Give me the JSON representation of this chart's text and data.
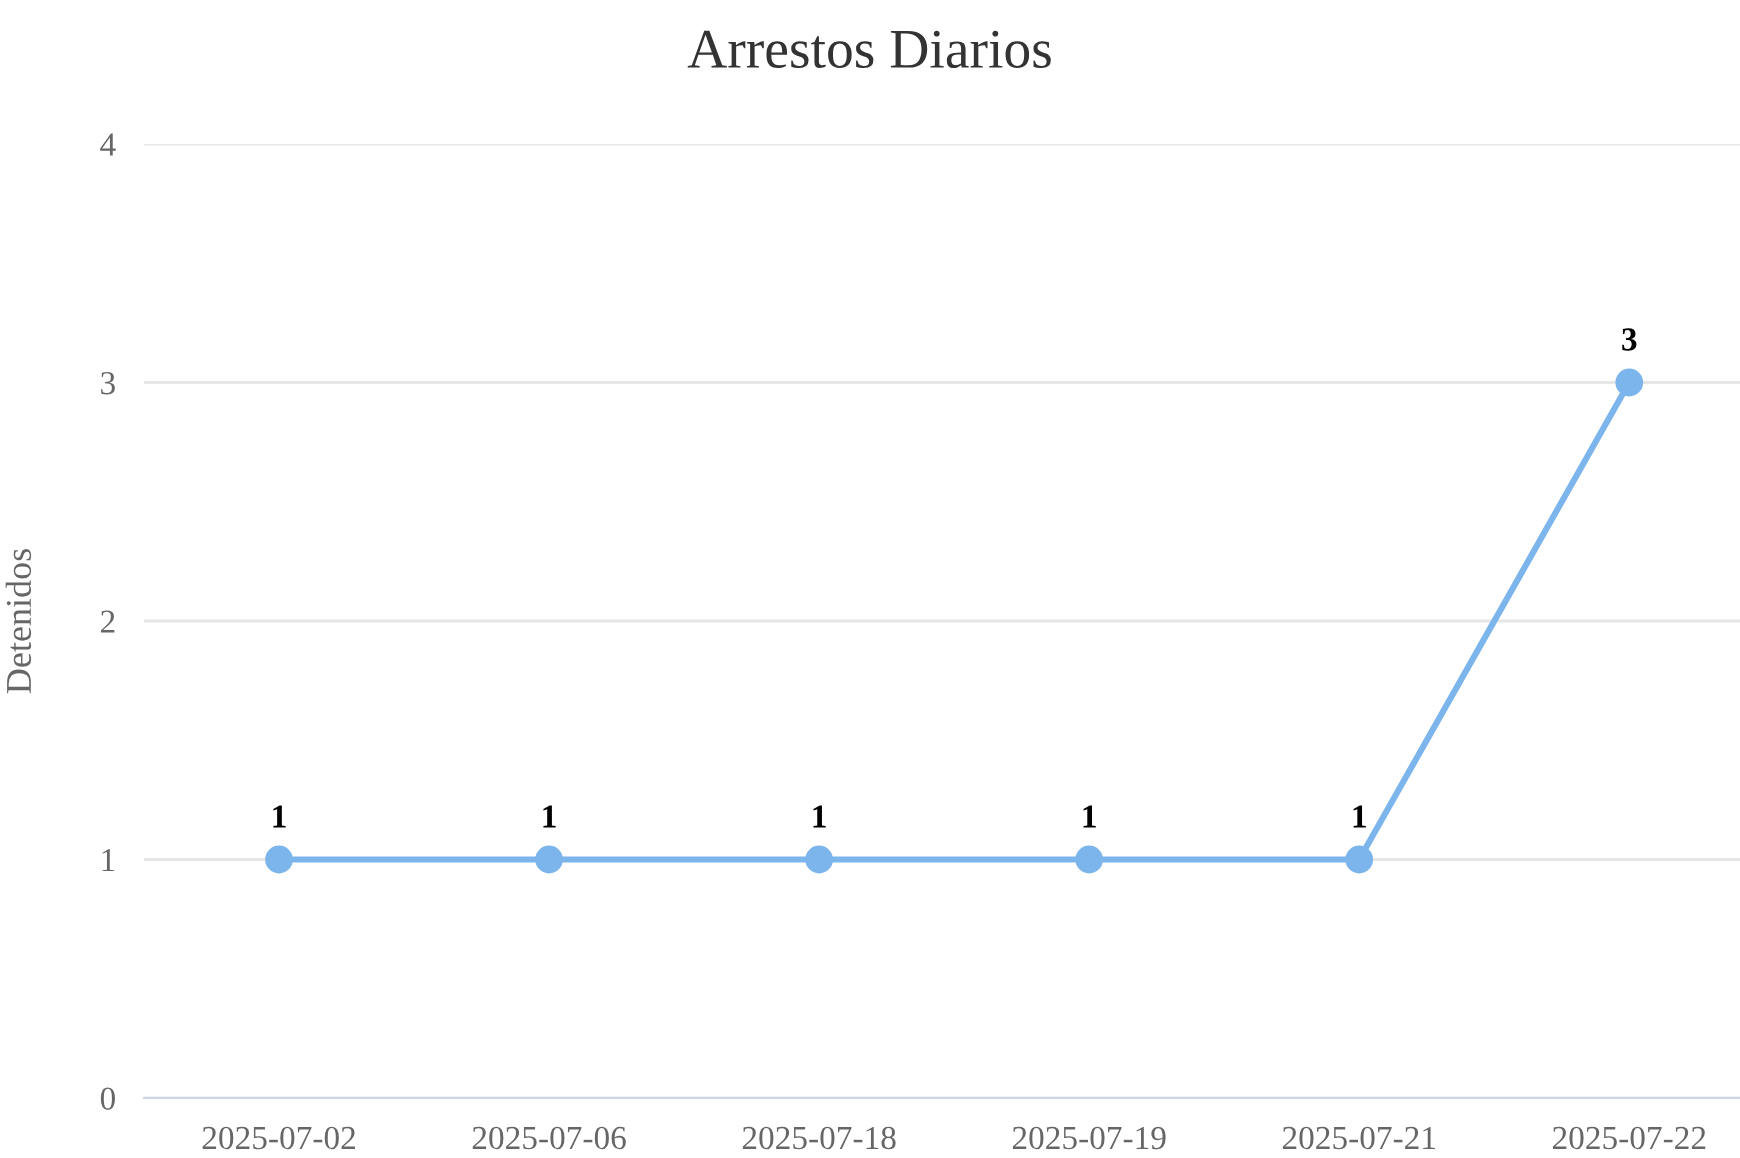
{
  "chart_data": {
    "type": "line",
    "title": "Arrestos Diarios",
    "ylabel": "Detenidos",
    "categories": [
      "2025-07-02",
      "2025-07-06",
      "2025-07-18",
      "2025-07-19",
      "2025-07-21",
      "2025-07-22"
    ],
    "series": [
      {
        "color": "#7cb5ec",
        "values": [
          1,
          1,
          1,
          1,
          1,
          3
        ]
      }
    ],
    "ylim": [
      0,
      4
    ],
    "yticks": [
      0,
      1,
      2,
      3,
      4
    ],
    "grid": "y",
    "marker": "circle",
    "line_style": "solid",
    "data_labels": true
  }
}
